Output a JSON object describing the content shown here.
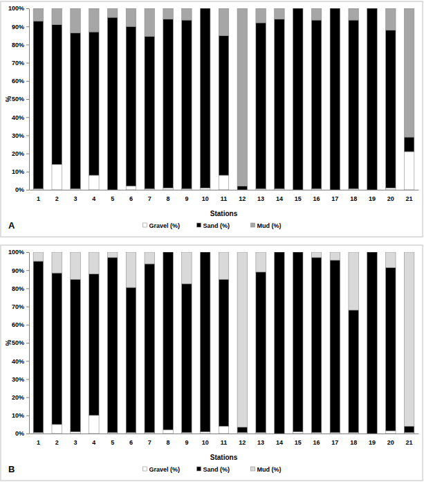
{
  "chart_data": [
    {
      "type": "bar",
      "title": "A",
      "stacked": true,
      "grid": false,
      "legend": "bottom",
      "x_label": "Stations",
      "y_label": "%",
      "categories": [
        "1",
        "2",
        "3",
        "4",
        "5",
        "6",
        "7",
        "8",
        "9",
        "10",
        "11",
        "12",
        "13",
        "14",
        "15",
        "16",
        "17",
        "18",
        "19",
        "20",
        "21"
      ],
      "ylim": [
        0,
        100
      ],
      "yticks": [
        {
          "value": 0,
          "label": "0%"
        },
        {
          "value": 10,
          "label": "10%"
        },
        {
          "value": 20,
          "label": "20%"
        },
        {
          "value": 30,
          "label": "30%"
        },
        {
          "value": 40,
          "label": "40%"
        },
        {
          "value": 50,
          "label": "50%"
        },
        {
          "value": 60,
          "label": "60%"
        },
        {
          "value": 70,
          "label": "70%"
        },
        {
          "value": 80,
          "label": "80%"
        },
        {
          "value": 90,
          "label": "90%"
        },
        {
          "value": 100,
          "label": "100%"
        }
      ],
      "series": [
        {
          "name": "Gravel (%)",
          "color": "#ffffff",
          "values": [
            0.5,
            14,
            0.5,
            8,
            0,
            2,
            0.5,
            1,
            0.5,
            1,
            8,
            0,
            0.5,
            0.5,
            0,
            0.5,
            0,
            0.5,
            0,
            1,
            21
          ]
        },
        {
          "name": "Sand (%)",
          "color": "#000000",
          "values": [
            92.5,
            77,
            86,
            79,
            95,
            88,
            84,
            93,
            93,
            99,
            77,
            2,
            91.5,
            93.5,
            100,
            93,
            100,
            93,
            100,
            87,
            8
          ]
        },
        {
          "name": "Mud (%)",
          "color": "#a6a6a6",
          "values": [
            7,
            9,
            13.5,
            13,
            5,
            10,
            15.5,
            6,
            6.5,
            0,
            15,
            98,
            8,
            6,
            0,
            6.5,
            0,
            6.5,
            0,
            12,
            71
          ]
        }
      ]
    },
    {
      "type": "bar",
      "title": "B",
      "stacked": true,
      "grid": false,
      "legend": "bottom",
      "x_label": "Stations",
      "y_label": "%",
      "categories": [
        "1",
        "2",
        "3",
        "4",
        "5",
        "6",
        "7",
        "8",
        "9",
        "10",
        "11",
        "12",
        "13",
        "14",
        "15",
        "16",
        "17",
        "18",
        "19",
        "20",
        "21"
      ],
      "ylim": [
        0,
        100
      ],
      "yticks": [
        {
          "value": 0,
          "label": "0%"
        },
        {
          "value": 10,
          "label": "10%"
        },
        {
          "value": 20,
          "label": "20%"
        },
        {
          "value": 30,
          "label": "30%"
        },
        {
          "value": 40,
          "label": "40%"
        },
        {
          "value": 50,
          "label": "50%"
        },
        {
          "value": 60,
          "label": "60%"
        },
        {
          "value": 70,
          "label": "70%"
        },
        {
          "value": 80,
          "label": "80%"
        },
        {
          "value": 90,
          "label": "90%"
        },
        {
          "value": 100,
          "label": "100%"
        }
      ],
      "series": [
        {
          "name": "Gravel (%)",
          "color": "#ffffff",
          "values": [
            0.5,
            5,
            1,
            10,
            0.5,
            0.5,
            0.5,
            2,
            0.5,
            1,
            4,
            0.5,
            0.5,
            0,
            1,
            0.5,
            0.5,
            0.5,
            0,
            1.5,
            0.5
          ]
        },
        {
          "name": "Sand (%)",
          "color": "#000000",
          "values": [
            94.5,
            83.5,
            84,
            78,
            96.5,
            80,
            93,
            98,
            82,
            99,
            81,
            3,
            88.5,
            100,
            99,
            96.5,
            95,
            67.5,
            100,
            90,
            3.5
          ]
        },
        {
          "name": "Mud (%)",
          "color": "#d9d9d9",
          "values": [
            5,
            11.5,
            15,
            12,
            3,
            19.5,
            6.5,
            0,
            17.5,
            0,
            15,
            96.5,
            11,
            0,
            0,
            3,
            4.5,
            32,
            0,
            8.5,
            96
          ]
        }
      ]
    }
  ]
}
